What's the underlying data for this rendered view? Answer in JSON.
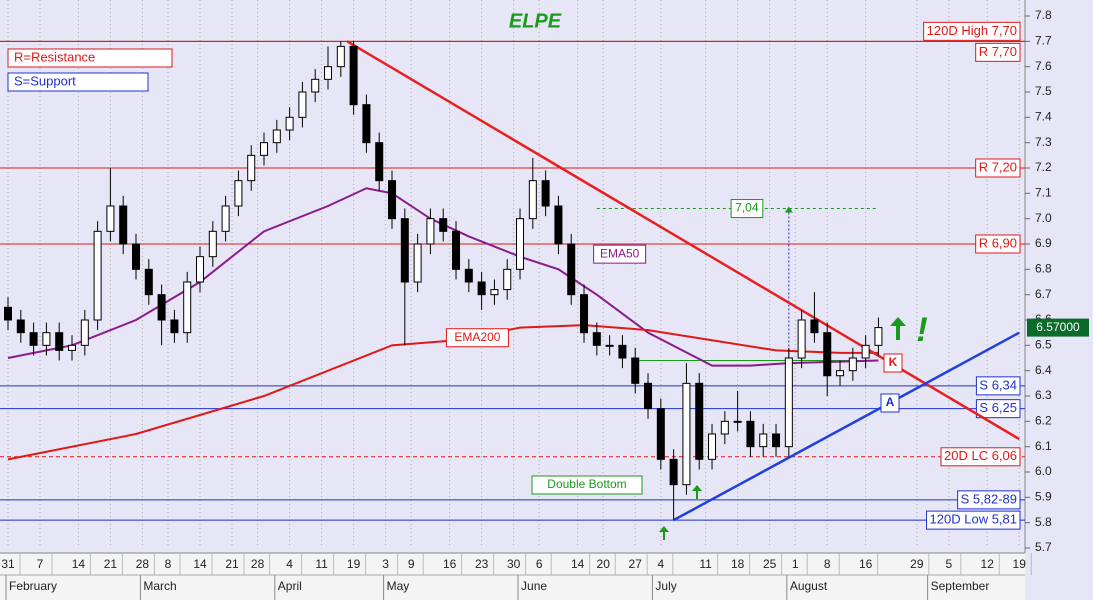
{
  "chart_data": {
    "type": "candlestick",
    "title": "ELPE",
    "xlim": [
      -1.25,
      158.9
    ],
    "ylim": [
      5.7,
      7.8
    ],
    "yticks": [
      5.7,
      5.8,
      5.9,
      {
        "value": 6,
        "label": "6.0"
      },
      6.1,
      6.2,
      6.3,
      6.4,
      6.5,
      6.6,
      6.7,
      6.8,
      6.9,
      {
        "value": 7,
        "label": "7.0"
      },
      7.1,
      7.2,
      7.3,
      7.4,
      7.5,
      7.6,
      7.7,
      7.8
    ],
    "xticks": [
      {
        "value": 0,
        "label": "31"
      },
      {
        "value": 5,
        "label": "7"
      },
      {
        "value": 11,
        "label": "14"
      },
      {
        "value": 16,
        "label": "21"
      },
      {
        "value": 21,
        "label": "28"
      },
      {
        "value": 25,
        "label": "8"
      },
      {
        "value": 30,
        "label": "14"
      },
      {
        "value": 35,
        "label": "21"
      },
      {
        "value": 39,
        "label": "28"
      },
      {
        "value": 44,
        "label": "4"
      },
      {
        "value": 49,
        "label": "11"
      },
      {
        "value": 54,
        "label": "19"
      },
      {
        "value": 59,
        "label": "3"
      },
      {
        "value": 63,
        "label": "9"
      },
      {
        "value": 69,
        "label": "16"
      },
      {
        "value": 74,
        "label": "23"
      },
      {
        "value": 79,
        "label": "30"
      },
      {
        "value": 83,
        "label": "6"
      },
      {
        "value": 89,
        "label": "14"
      },
      {
        "value": 93,
        "label": "20"
      },
      {
        "value": 98,
        "label": "27"
      },
      {
        "value": 102,
        "label": "4"
      },
      {
        "value": 109,
        "label": "11"
      },
      {
        "value": 114,
        "label": "18"
      },
      {
        "value": 119,
        "label": "25"
      },
      {
        "value": 123,
        "label": "1"
      },
      {
        "value": 128,
        "label": "8"
      },
      {
        "value": 134,
        "label": "16"
      },
      {
        "value": 142,
        "label": "29"
      },
      {
        "value": 147,
        "label": "5"
      },
      {
        "value": 153,
        "label": "12"
      },
      {
        "value": 158,
        "label": "19"
      }
    ],
    "months": [
      {
        "value": 0,
        "label": "February"
      },
      {
        "value": 21,
        "label": "March"
      },
      {
        "value": 42,
        "label": "April"
      },
      {
        "value": 59,
        "label": "May"
      },
      {
        "value": 80,
        "label": "June"
      },
      {
        "value": 101,
        "label": "July"
      },
      {
        "value": 122,
        "label": "August"
      },
      {
        "value": 144,
        "label": "September"
      }
    ],
    "grid": true,
    "x": [
      0,
      2,
      4,
      6,
      8,
      10,
      12,
      14,
      16,
      18,
      20,
      22,
      24,
      26,
      28,
      30,
      32,
      34,
      36,
      38,
      40,
      42,
      44,
      46,
      48,
      50,
      52,
      54,
      56,
      58,
      60,
      62,
      64,
      66,
      68,
      70,
      72,
      74,
      76,
      78,
      80,
      82,
      84,
      86,
      88,
      90,
      92,
      94,
      96,
      98,
      100,
      102,
      104,
      106,
      108,
      110,
      112,
      114,
      116,
      118,
      120,
      122,
      124,
      126,
      128,
      130,
      132,
      134,
      136
    ],
    "open": [
      6.65,
      6.6,
      6.55,
      6.5,
      6.55,
      6.48,
      6.5,
      6.6,
      6.95,
      7.05,
      6.9,
      6.8,
      6.7,
      6.6,
      6.55,
      6.75,
      6.85,
      6.95,
      7.05,
      7.15,
      7.25,
      7.3,
      7.35,
      7.4,
      7.5,
      7.55,
      7.6,
      7.68,
      7.45,
      7.3,
      7.15,
      7.0,
      6.75,
      6.9,
      7.0,
      6.95,
      6.8,
      6.75,
      6.7,
      6.72,
      6.8,
      7.0,
      7.15,
      7.05,
      6.9,
      6.7,
      6.55,
      6.5,
      6.5,
      6.45,
      6.35,
      6.25,
      6.05,
      5.95,
      6.35,
      6.05,
      6.15,
      6.2,
      6.2,
      6.1,
      6.15,
      6.1,
      6.45,
      6.6,
      6.55,
      6.38,
      6.4,
      6.45,
      6.5
    ],
    "high": [
      6.69,
      6.64,
      6.59,
      6.59,
      6.59,
      6.54,
      6.64,
      6.99,
      7.2,
      7.09,
      6.94,
      6.84,
      6.74,
      6.64,
      6.79,
      6.89,
      6.99,
      7.09,
      7.19,
      7.29,
      7.34,
      7.39,
      7.44,
      7.54,
      7.59,
      7.68,
      7.7,
      7.7,
      7.49,
      7.34,
      7.19,
      7.04,
      6.94,
      7.04,
      7.04,
      6.99,
      6.84,
      6.79,
      6.76,
      6.84,
      7.04,
      7.24,
      7.19,
      7.09,
      6.94,
      6.74,
      6.59,
      6.54,
      6.54,
      6.49,
      6.39,
      6.29,
      6.09,
      6.43,
      6.39,
      6.19,
      6.24,
      6.32,
      6.24,
      6.19,
      6.19,
      6.49,
      6.64,
      6.71,
      6.59,
      6.44,
      6.49,
      6.54,
      6.61
    ],
    "low": [
      6.56,
      6.51,
      6.46,
      6.46,
      6.44,
      6.44,
      6.46,
      6.56,
      6.91,
      6.86,
      6.76,
      6.66,
      6.5,
      6.51,
      6.51,
      6.71,
      6.81,
      6.91,
      7.01,
      7.11,
      7.21,
      7.26,
      7.31,
      7.36,
      7.46,
      7.51,
      7.56,
      7.41,
      7.26,
      7.11,
      6.96,
      6.5,
      6.71,
      6.86,
      6.91,
      6.76,
      6.71,
      6.64,
      6.66,
      6.68,
      6.76,
      6.96,
      7.01,
      6.86,
      6.66,
      6.51,
      6.46,
      6.46,
      6.41,
      6.31,
      6.21,
      6.01,
      5.81,
      5.91,
      6.01,
      6.01,
      6.11,
      6.16,
      6.06,
      6.06,
      6.06,
      6.06,
      6.41,
      6.51,
      6.3,
      6.34,
      6.36,
      6.41,
      6.46
    ],
    "close": [
      6.6,
      6.55,
      6.5,
      6.55,
      6.48,
      6.5,
      6.6,
      6.95,
      7.05,
      6.9,
      6.8,
      6.7,
      6.6,
      6.55,
      6.75,
      6.85,
      6.95,
      7.05,
      7.15,
      7.25,
      7.3,
      7.35,
      7.4,
      7.5,
      7.55,
      7.6,
      7.68,
      7.45,
      7.3,
      7.15,
      7.0,
      6.75,
      6.9,
      7.0,
      6.95,
      6.8,
      6.75,
      6.7,
      6.72,
      6.8,
      7.0,
      7.15,
      7.05,
      6.9,
      6.7,
      6.55,
      6.5,
      6.5,
      6.45,
      6.35,
      6.25,
      6.05,
      5.95,
      6.35,
      6.05,
      6.15,
      6.2,
      6.2,
      6.1,
      6.15,
      6.1,
      6.45,
      6.6,
      6.55,
      6.38,
      6.4,
      6.45,
      6.5,
      6.57
    ],
    "series": [
      {
        "name": "EMA50",
        "color": "#8b1a8b",
        "x": [
          0,
          10,
          20,
          30,
          40,
          50,
          56,
          60,
          66,
          72,
          80,
          86,
          92,
          100,
          110,
          116,
          122,
          136
        ],
        "values": [
          6.45,
          6.5,
          6.6,
          6.75,
          6.95,
          7.05,
          7.12,
          7.1,
          7.0,
          6.93,
          6.85,
          6.8,
          6.7,
          6.55,
          6.42,
          6.42,
          6.43,
          6.44
        ]
      },
      {
        "name": "EMA200",
        "color": "#e01818",
        "x": [
          0,
          20,
          40,
          50,
          60,
          70,
          80,
          90,
          100,
          110,
          120,
          130,
          136
        ],
        "values": [
          6.05,
          6.15,
          6.3,
          6.4,
          6.5,
          6.52,
          6.57,
          6.58,
          6.56,
          6.52,
          6.48,
          6.47,
          6.47
        ]
      }
    ],
    "levels": [
      {
        "value": 7.7,
        "label": "120D High 7,70",
        "color": "#e01818",
        "dash": false
      },
      {
        "value": 7.7,
        "label": "R 7,70",
        "color": "#e01818",
        "dash": false
      },
      {
        "value": 7.2,
        "label": "R 7,20",
        "color": "#e01818",
        "dash": false
      },
      {
        "value": 6.9,
        "label": "R 6,90",
        "color": "#e01818",
        "dash": false
      },
      {
        "value": 6.34,
        "label": "S 6,34",
        "color": "#2030d0",
        "dash": false
      },
      {
        "value": 6.25,
        "label": "S 6,25",
        "color": "#2030d0",
        "dash": false
      },
      {
        "value": 6.06,
        "label": "20D LC 6,06",
        "color": "#e01818",
        "dash": true
      },
      {
        "value": 5.89,
        "label": "S 5,82-89",
        "color": "#2030d0",
        "dash": false
      },
      {
        "value": 5.81,
        "label": "120D Low 5,81",
        "color": "#2030d0",
        "dash": false
      }
    ],
    "trendlines": [
      {
        "color": "#e82020",
        "x": [
          53,
          158
        ],
        "values": [
          7.7,
          6.13
        ]
      },
      {
        "color": "#2040e0",
        "x": [
          104,
          158
        ],
        "values": [
          5.81,
          6.55
        ]
      }
    ],
    "target": {
      "value": 7.04,
      "label": "7,04",
      "x": [
        92,
        136
      ]
    },
    "neckline": {
      "value": 6.44,
      "x": [
        98,
        136
      ]
    },
    "last_price": {
      "value": 6.57,
      "label": "6.57000"
    },
    "annotations": {
      "resistance_key": "R=Resistance",
      "support_key": "S=Support",
      "double_bottom": "Double Bottom",
      "point_k": "K",
      "point_a": "A",
      "exclamation": "!"
    }
  }
}
